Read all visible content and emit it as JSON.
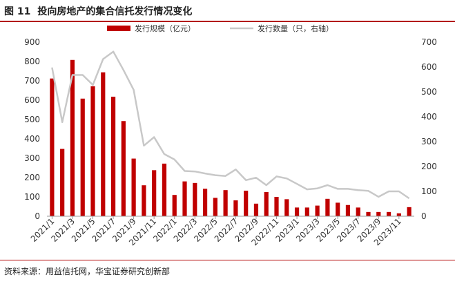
{
  "figure": {
    "number": "图 11",
    "title": "投向房地产的集合信托发行情况变化",
    "source": "资料来源：用益信托网，华宝证券研究创新部"
  },
  "chart_data": {
    "type": "bar",
    "categories": [
      "2021/1",
      "2021/2",
      "2021/3",
      "2021/4",
      "2021/5",
      "2021/6",
      "2021/7",
      "2021/8",
      "2021/9",
      "2021/10",
      "2021/11",
      "2021/12",
      "2022/1",
      "2022/2",
      "2022/3",
      "2022/4",
      "2022/5",
      "2022/6",
      "2022/7",
      "2022/8",
      "2022/9",
      "2022/10",
      "2022/11",
      "2022/12",
      "2023/1",
      "2023/2",
      "2023/3",
      "2023/4",
      "2023/5",
      "2023/6",
      "2023/7",
      "2023/8",
      "2023/9",
      "2023/10",
      "2023/11",
      "2023/12"
    ],
    "x_tick_labels": [
      "2021/1",
      "2021/3",
      "2021/5",
      "2021/7",
      "2021/9",
      "2021/11",
      "2022/1",
      "2022/3",
      "2022/5",
      "2022/7",
      "2022/9",
      "2022/11",
      "2023/1",
      "2023/3",
      "2023/5",
      "2023/7",
      "2023/9",
      "2023/11"
    ],
    "series": [
      {
        "name": "发行规模（亿元）",
        "type": "bar",
        "axis": "left",
        "color": "#c00000",
        "values": [
          712,
          348,
          808,
          608,
          672,
          744,
          618,
          492,
          298,
          160,
          238,
          272,
          110,
          180,
          172,
          142,
          95,
          135,
          82,
          132,
          65,
          125,
          100,
          88,
          45,
          45,
          55,
          90,
          70,
          58,
          45,
          22,
          22,
          22,
          15,
          47
        ]
      },
      {
        "name": "发行数量（只，右轴）",
        "type": "line",
        "axis": "right",
        "color": "#c8c8c8",
        "values": [
          598,
          378,
          568,
          568,
          528,
          632,
          662,
          588,
          508,
          284,
          318,
          250,
          228,
          182,
          180,
          172,
          165,
          162,
          188,
          145,
          155,
          125,
          160,
          152,
          130,
          108,
          112,
          125,
          110,
          110,
          105,
          102,
          78,
          100,
          100,
          72
        ]
      }
    ],
    "ylim_left": [
      0,
      900
    ],
    "yticks_left": [
      0,
      100,
      200,
      300,
      400,
      500,
      600,
      700,
      800,
      900
    ],
    "ylim_right": [
      0,
      700
    ],
    "yticks_right": [
      0,
      100,
      200,
      300,
      400,
      500,
      600,
      700
    ],
    "grid": false,
    "legend_position": "top-center"
  }
}
